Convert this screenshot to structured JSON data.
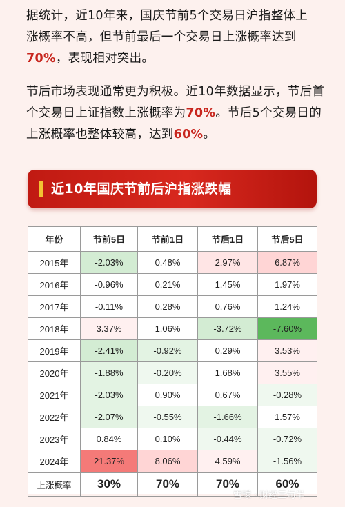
{
  "para1": {
    "line1": "据统计，近10年来，国庆节前5个交易日沪指整体上",
    "line2": "涨概率不高，但节前最后一个交易日上涨概率达到",
    "hl": "70%",
    "tail": "，表现相对突出。"
  },
  "para2": {
    "line1": "节后市场表现通常更为积极。近10年数据显示，节后首",
    "line2a": "个交易日上证指数上涨概率为",
    "hl1": "70%",
    "line2b": "。节后5个交易日的",
    "line3a": "上涨概率也整体较高，达到",
    "hl2": "60%",
    "line3b": "。"
  },
  "banner": {
    "title": "近10年国庆节前后沪指涨跌幅"
  },
  "table": {
    "headers": [
      "年份",
      "节前5日",
      "节前1日",
      "节后1日",
      "节后5日"
    ],
    "rows": [
      {
        "year": "2015年",
        "c": [
          "-2.03%",
          "0.48%",
          "2.97%",
          "6.87%"
        ]
      },
      {
        "year": "2016年",
        "c": [
          "-0.96%",
          "0.21%",
          "1.45%",
          "1.97%"
        ]
      },
      {
        "year": "2017年",
        "c": [
          "-0.11%",
          "0.28%",
          "0.76%",
          "1.24%"
        ]
      },
      {
        "year": "2018年",
        "c": [
          "3.37%",
          "1.06%",
          "-3.72%",
          "-7.60%"
        ]
      },
      {
        "year": "2019年",
        "c": [
          "-2.41%",
          "-0.92%",
          "0.29%",
          "3.53%"
        ]
      },
      {
        "year": "2020年",
        "c": [
          "-1.88%",
          "-0.20%",
          "1.68%",
          "3.55%"
        ]
      },
      {
        "year": "2021年",
        "c": [
          "-2.03%",
          "0.90%",
          "0.67%",
          "-0.28%"
        ]
      },
      {
        "year": "2022年",
        "c": [
          "-2.07%",
          "-0.55%",
          "-1.66%",
          "1.57%"
        ]
      },
      {
        "year": "2023年",
        "c": [
          "0.84%",
          "0.10%",
          "-0.44%",
          "-0.72%"
        ]
      },
      {
        "year": "2024年",
        "c": [
          "21.37%",
          "8.06%",
          "4.59%",
          "-1.56%"
        ]
      }
    ],
    "summary": {
      "label": "上涨概率",
      "c": [
        "30%",
        "70%",
        "70%",
        "60%"
      ]
    }
  },
  "watermark": "雪球 · 财经三句半"
}
